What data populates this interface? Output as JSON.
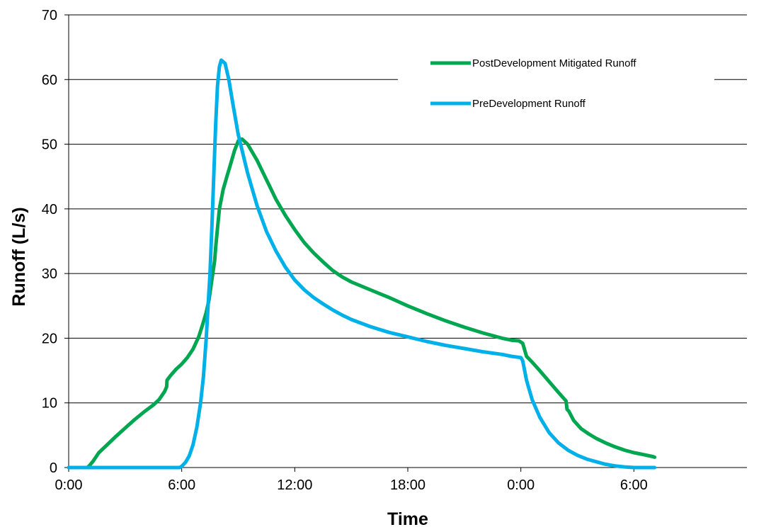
{
  "chart_data": {
    "type": "line",
    "xlabel": "Time",
    "ylabel": "Runoff (L/s)",
    "xlim": [
      0,
      36
    ],
    "ylim": [
      0,
      70
    ],
    "x_ticks": [
      {
        "value": 0,
        "label": "0:00"
      },
      {
        "value": 6,
        "label": "6:00"
      },
      {
        "value": 12,
        "label": "12:00"
      },
      {
        "value": 18,
        "label": "18:00"
      },
      {
        "value": 24,
        "label": "0:00"
      },
      {
        "value": 30,
        "label": "6:00"
      }
    ],
    "y_ticks": [
      0,
      10,
      20,
      30,
      40,
      50,
      60,
      70
    ],
    "grid": "horizontal",
    "legend": "top-right",
    "series": [
      {
        "name": "PostDevelopment Mitigated Runoff",
        "color": "#00A650",
        "points": [
          [
            0,
            0
          ],
          [
            1.0,
            0
          ],
          [
            1.1,
            0.3
          ],
          [
            1.3,
            1
          ],
          [
            1.6,
            2.3
          ],
          [
            2.0,
            3.4
          ],
          [
            2.5,
            4.8
          ],
          [
            3.0,
            6.1
          ],
          [
            3.5,
            7.4
          ],
          [
            4.0,
            8.6
          ],
          [
            4.5,
            9.7
          ],
          [
            4.8,
            10.5
          ],
          [
            5.1,
            11.8
          ],
          [
            5.2,
            12.5
          ],
          [
            5.22,
            13.5
          ],
          [
            5.4,
            14.2
          ],
          [
            5.7,
            15.2
          ],
          [
            6.0,
            16.0
          ],
          [
            6.3,
            17.0
          ],
          [
            6.6,
            18.3
          ],
          [
            6.9,
            20.2
          ],
          [
            7.1,
            22.0
          ],
          [
            7.3,
            24.0
          ],
          [
            7.45,
            26.0
          ],
          [
            7.6,
            29.0
          ],
          [
            7.7,
            31.0
          ],
          [
            7.75,
            32.0
          ],
          [
            7.8,
            34.0
          ],
          [
            7.9,
            37.0
          ],
          [
            8.0,
            40.0
          ],
          [
            8.2,
            43.0
          ],
          [
            8.4,
            45.0
          ],
          [
            8.6,
            47.0
          ],
          [
            8.8,
            49.0
          ],
          [
            9.0,
            50.5
          ],
          [
            9.2,
            50.8
          ],
          [
            9.5,
            50.0
          ],
          [
            10.0,
            47.5
          ],
          [
            10.5,
            44.5
          ],
          [
            11.0,
            41.5
          ],
          [
            11.5,
            39.0
          ],
          [
            12.0,
            36.8
          ],
          [
            12.5,
            34.8
          ],
          [
            13.0,
            33.2
          ],
          [
            13.5,
            31.8
          ],
          [
            14.0,
            30.5
          ],
          [
            14.5,
            29.5
          ],
          [
            15.0,
            28.7
          ],
          [
            15.5,
            28.1
          ],
          [
            16.0,
            27.5
          ],
          [
            17.0,
            26.3
          ],
          [
            18.0,
            25.0
          ],
          [
            19.0,
            23.8
          ],
          [
            20.0,
            22.7
          ],
          [
            21.0,
            21.7
          ],
          [
            22.0,
            20.8
          ],
          [
            23.0,
            20.0
          ],
          [
            23.5,
            19.7
          ],
          [
            23.9,
            19.6
          ],
          [
            24.1,
            19.2
          ],
          [
            24.3,
            17.2
          ],
          [
            24.6,
            16.3
          ],
          [
            25.0,
            15.0
          ],
          [
            25.5,
            13.3
          ],
          [
            26.0,
            11.6
          ],
          [
            26.4,
            10.3
          ],
          [
            26.45,
            9.0
          ],
          [
            26.55,
            8.7
          ],
          [
            26.8,
            7.3
          ],
          [
            27.2,
            6.0
          ],
          [
            27.6,
            5.2
          ],
          [
            28.0,
            4.5
          ],
          [
            28.5,
            3.8
          ],
          [
            29.0,
            3.2
          ],
          [
            29.5,
            2.7
          ],
          [
            30.0,
            2.3
          ],
          [
            30.5,
            2.0
          ],
          [
            31.0,
            1.7
          ],
          [
            31.1,
            1.6
          ]
        ]
      },
      {
        "name": "PreDevelopment Runoff",
        "color": "#00B0E8",
        "points": [
          [
            0,
            0
          ],
          [
            5.0,
            0
          ],
          [
            5.9,
            0
          ],
          [
            6.0,
            0.2
          ],
          [
            6.2,
            0.8
          ],
          [
            6.4,
            1.8
          ],
          [
            6.6,
            3.5
          ],
          [
            6.8,
            6.2
          ],
          [
            7.0,
            10.0
          ],
          [
            7.15,
            14.0
          ],
          [
            7.3,
            20.0
          ],
          [
            7.4,
            25.0
          ],
          [
            7.5,
            30.0
          ],
          [
            7.6,
            37.0
          ],
          [
            7.7,
            45.0
          ],
          [
            7.8,
            53.0
          ],
          [
            7.9,
            59.0
          ],
          [
            8.0,
            62.0
          ],
          [
            8.1,
            63.0
          ],
          [
            8.3,
            62.5
          ],
          [
            8.5,
            60.0
          ],
          [
            8.7,
            56.5
          ],
          [
            9.0,
            51.5
          ],
          [
            9.5,
            45.5
          ],
          [
            10.0,
            40.5
          ],
          [
            10.5,
            36.5
          ],
          [
            11.0,
            33.5
          ],
          [
            11.5,
            31.0
          ],
          [
            12.0,
            29.0
          ],
          [
            12.5,
            27.5
          ],
          [
            13.0,
            26.3
          ],
          [
            13.5,
            25.3
          ],
          [
            14.0,
            24.4
          ],
          [
            14.5,
            23.6
          ],
          [
            15.0,
            22.9
          ],
          [
            16.0,
            21.8
          ],
          [
            17.0,
            20.9
          ],
          [
            18.0,
            20.2
          ],
          [
            19.0,
            19.5
          ],
          [
            20.0,
            18.9
          ],
          [
            21.0,
            18.4
          ],
          [
            22.0,
            17.9
          ],
          [
            23.0,
            17.5
          ],
          [
            23.5,
            17.2
          ],
          [
            24.0,
            17.0
          ],
          [
            24.1,
            16.5
          ],
          [
            24.3,
            13.5
          ],
          [
            24.6,
            10.5
          ],
          [
            25.0,
            7.8
          ],
          [
            25.5,
            5.4
          ],
          [
            26.0,
            3.8
          ],
          [
            26.5,
            2.7
          ],
          [
            27.0,
            1.9
          ],
          [
            27.5,
            1.3
          ],
          [
            28.0,
            0.9
          ],
          [
            28.5,
            0.5
          ],
          [
            29.0,
            0.25
          ],
          [
            29.5,
            0.1
          ],
          [
            30.0,
            0
          ],
          [
            31.1,
            0
          ]
        ]
      }
    ]
  }
}
